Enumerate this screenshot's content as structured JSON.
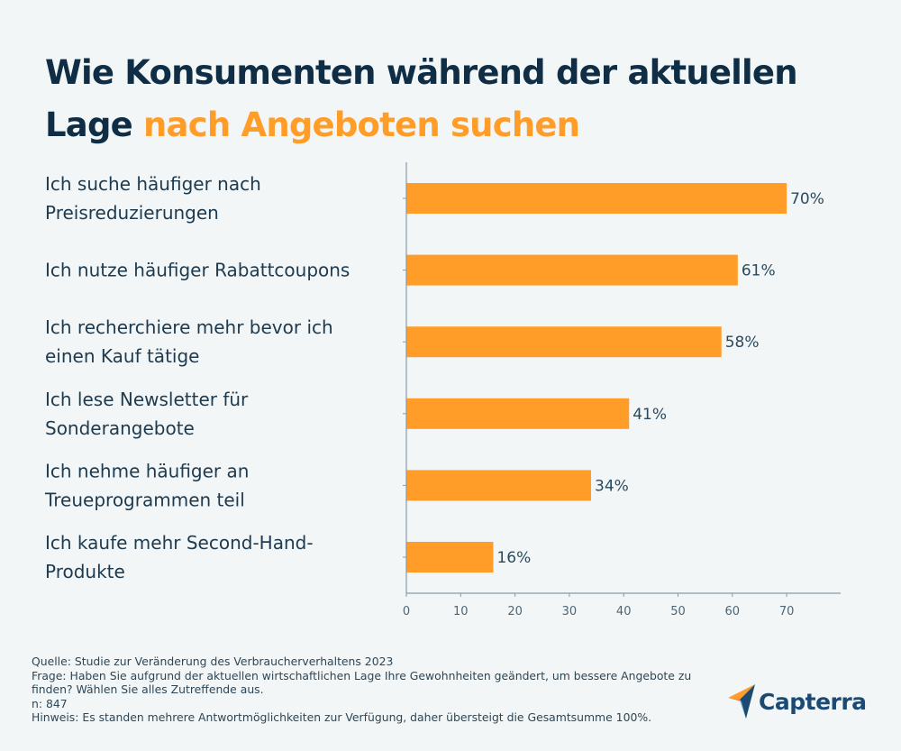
{
  "title": {
    "line1": "Wie Konsumenten während der aktuellen",
    "line2_prefix": "Lage ",
    "line2_accent": "nach Angeboten suchen"
  },
  "colors": {
    "background": "#f2f6f7",
    "bar": "#ff9d28",
    "title_dark": "#0f2d45",
    "title_accent": "#ff9d28",
    "text": "#1d3a4f",
    "axis": "#8a9aa5",
    "logo_text": "#1d4a72"
  },
  "chart_data": {
    "type": "bar",
    "orientation": "horizontal",
    "title": "Wie Konsumenten während der aktuellen Lage nach Angeboten suchen",
    "categories": [
      [
        "Ich suche häufiger nach",
        "Preisreduzierungen"
      ],
      [
        "Ich nutze häufiger Rabattcoupons"
      ],
      [
        "Ich recherchiere mehr bevor ich",
        "einen Kauf tätige"
      ],
      [
        "Ich lese Newsletter für",
        "Sonderangebote"
      ],
      [
        "Ich nehme häufiger an",
        "Treueprogrammen teil"
      ],
      [
        "Ich kaufe mehr Second-Hand-",
        "Produkte"
      ]
    ],
    "values": [
      70,
      61,
      58,
      41,
      34,
      16
    ],
    "value_labels": [
      "70%",
      "61%",
      "58%",
      "41%",
      "34%",
      "16%"
    ],
    "xlabel": "",
    "ylabel": "",
    "xlim": [
      0,
      80
    ],
    "xticks": [
      0,
      10,
      20,
      30,
      40,
      50,
      60,
      70
    ],
    "xtick_labels": [
      "0",
      "10",
      "20",
      "30",
      "40",
      "50",
      "60",
      "70"
    ],
    "grid": false,
    "legend": "none"
  },
  "footer": {
    "source": "Quelle: Studie zur Veränderung des Verbraucherverhaltens 2023",
    "question_line1": "Frage: Haben Sie aufgrund der aktuellen wirtschaftlichen Lage Ihre Gewohnheiten geändert, um bessere Angebote zu",
    "question_line2": "finden? Wählen Sie alles Zutreffende aus.",
    "sample": "n: 847",
    "note": "Hinweis: Es standen mehrere Antwortmöglichkeiten zur Verfügung, daher übersteigt die Gesamtsumme 100%."
  },
  "logo": {
    "icon": "capterra-arrow-icon",
    "text": "Capterra"
  }
}
